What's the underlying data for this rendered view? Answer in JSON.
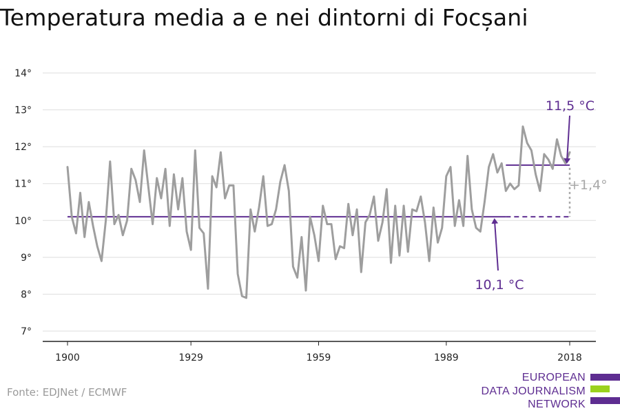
{
  "title": "Temperatura media a e nei dintorni di Focșani",
  "source": "Fonte: EDJNet / ECMWF",
  "logo": {
    "lines": [
      "EUROPEAN",
      "DATA JOURNALISM",
      "NETWORK"
    ],
    "colors": {
      "purple": "#5e2d91",
      "green": "#9bd21e"
    }
  },
  "colors": {
    "series": "#9e9e9e",
    "reference": "#5e2d91",
    "diff": "#a8a8a8",
    "grid": "#dddddd",
    "axis": "#222222"
  },
  "chart_data": {
    "type": "line",
    "title": "Temperatura media a e nei dintorni di Focșani",
    "xlabel": "",
    "ylabel": "",
    "xlim": [
      1900,
      2018
    ],
    "ylim": [
      7,
      14
    ],
    "grid": true,
    "x_tick_labels": [
      "1900",
      "1929",
      "1959",
      "1989",
      "2018"
    ],
    "x_tick_values": [
      1900,
      1929,
      1959,
      1989,
      2018
    ],
    "y_tick_labels": [
      "7°",
      "8°",
      "9°",
      "10°",
      "11°",
      "12°",
      "13°",
      "14°"
    ],
    "y_tick_values": [
      7,
      8,
      9,
      10,
      11,
      12,
      13,
      14
    ],
    "series": [
      {
        "x": [
          1900,
          1901,
          1902,
          1903,
          1904,
          1905,
          1906,
          1907,
          1908,
          1909,
          1910,
          1911,
          1912,
          1913,
          1914,
          1915,
          1916,
          1917,
          1918,
          1919,
          1920,
          1921,
          1922,
          1923,
          1924,
          1925,
          1926,
          1927,
          1928,
          1929,
          1930,
          1931,
          1932,
          1933,
          1934,
          1935,
          1936,
          1937,
          1938,
          1939,
          1940,
          1941,
          1942,
          1943,
          1944,
          1945,
          1946,
          1947,
          1948,
          1949,
          1950,
          1951,
          1952,
          1953,
          1954,
          1955,
          1956,
          1957,
          1958,
          1959,
          1960,
          1961,
          1962,
          1963,
          1964,
          1965,
          1966,
          1967,
          1968,
          1969,
          1970,
          1971,
          1972,
          1973,
          1974,
          1975,
          1976,
          1977,
          1978,
          1979,
          1980,
          1981,
          1982,
          1983,
          1984,
          1985,
          1986,
          1987,
          1988,
          1989,
          1990,
          1991,
          1992,
          1993,
          1994,
          1995,
          1996,
          1997,
          1998,
          1999,
          2000,
          2001,
          2002,
          2003,
          2004,
          2005,
          2006,
          2007,
          2008,
          2009,
          2010,
          2011,
          2012,
          2013,
          2014,
          2015,
          2016,
          2017,
          2018
        ],
        "values": [
          11.45,
          10.1,
          9.65,
          10.75,
          9.55,
          10.5,
          9.85,
          9.3,
          8.9,
          10.0,
          11.6,
          9.9,
          10.15,
          9.6,
          10.0,
          11.4,
          11.1,
          10.5,
          11.9,
          10.9,
          9.9,
          11.15,
          10.6,
          11.4,
          9.85,
          11.25,
          10.3,
          11.15,
          9.7,
          9.2,
          11.9,
          9.8,
          9.65,
          8.15,
          11.2,
          10.9,
          11.85,
          10.6,
          10.95,
          10.95,
          8.55,
          7.95,
          7.9,
          10.3,
          9.7,
          10.35,
          11.2,
          9.85,
          9.9,
          10.3,
          11.05,
          11.5,
          10.8,
          8.75,
          8.45,
          9.55,
          8.1,
          10.1,
          9.6,
          8.9,
          10.4,
          9.9,
          9.9,
          8.95,
          9.3,
          9.25,
          10.45,
          9.6,
          10.3,
          8.6,
          9.95,
          10.15,
          10.65,
          9.45,
          9.95,
          10.85,
          8.85,
          10.4,
          9.05,
          10.4,
          9.15,
          10.3,
          10.25,
          10.65,
          9.95,
          8.9,
          10.35,
          9.4,
          9.8,
          11.2,
          11.45,
          9.85,
          10.55,
          9.85,
          11.75,
          10.3,
          9.8,
          9.7,
          10.5,
          11.45,
          11.8,
          11.3,
          11.55,
          10.8,
          11.0,
          10.85,
          10.95,
          12.55,
          12.1,
          11.9,
          11.25,
          10.8,
          11.8,
          11.65,
          11.4,
          12.2,
          11.75,
          11.55,
          11.85
        ]
      }
    ],
    "reference_lines": [
      {
        "label": "10,1 °C",
        "value": 10.1,
        "x_start": 1900,
        "x_end": 2018
      },
      {
        "label": "11,5 °C",
        "value": 11.5,
        "x_start": 2003,
        "x_end": 2018
      }
    ],
    "difference_label": "+1,4°"
  }
}
